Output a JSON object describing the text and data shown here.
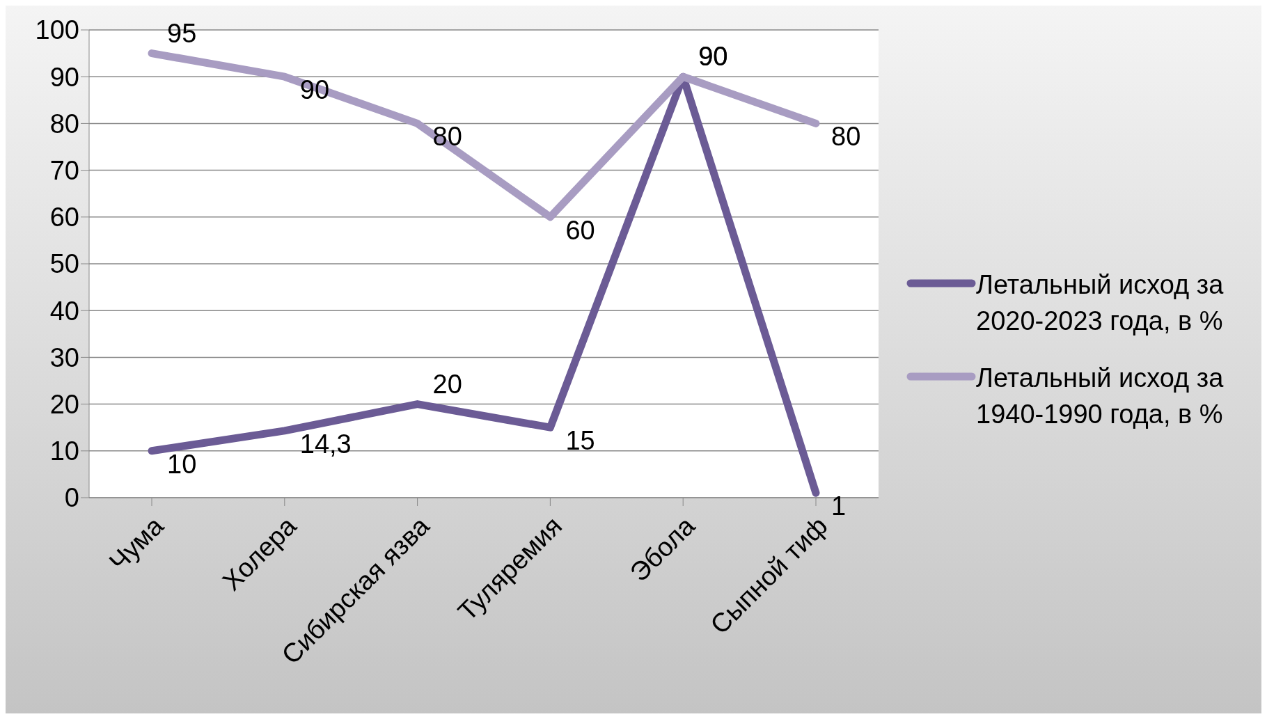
{
  "chart_data": {
    "type": "line",
    "categories": [
      "Чума",
      "Холера",
      "Сибирская язва",
      "Туляремия",
      "Эбола",
      "Сыпной тиф"
    ],
    "series": [
      {
        "name": "Летальный исход за 2020-2023 года, в %",
        "color": "#6b5b95",
        "values": [
          10,
          14.3,
          20,
          15,
          90,
          1
        ],
        "value_labels": [
          "10",
          "14,3",
          "20",
          "15",
          "90",
          "1"
        ]
      },
      {
        "name": "Летальный исход за 1940-1990 года, в %",
        "color": "#a89cc2",
        "values": [
          95,
          90,
          80,
          60,
          90,
          80
        ],
        "value_labels": [
          "95",
          "90",
          "80",
          "60",
          "90",
          "80"
        ]
      }
    ],
    "ylim": [
      0,
      100
    ],
    "yticks": [
      0,
      10,
      20,
      30,
      40,
      50,
      60,
      70,
      80,
      90,
      100
    ],
    "grid": "y",
    "legend": "right",
    "marker": "none",
    "line_style": "solid"
  }
}
